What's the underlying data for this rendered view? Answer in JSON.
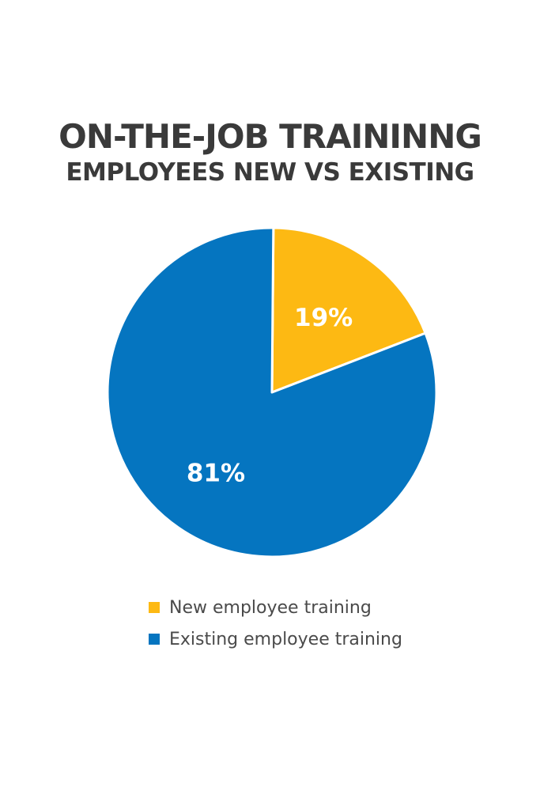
{
  "chart_data": {
    "type": "pie",
    "title": "ON-THE-JOB TRAININNG",
    "subtitle": "EMPLOYEES NEW VS EXISTING",
    "slices": [
      {
        "name": "New employee training",
        "value": 19,
        "label": "19%",
        "color": "#FDB913"
      },
      {
        "name": "Existing employee training",
        "value": 81,
        "label": "81%",
        "color": "#0575C0"
      }
    ],
    "legend_position": "bottom"
  }
}
